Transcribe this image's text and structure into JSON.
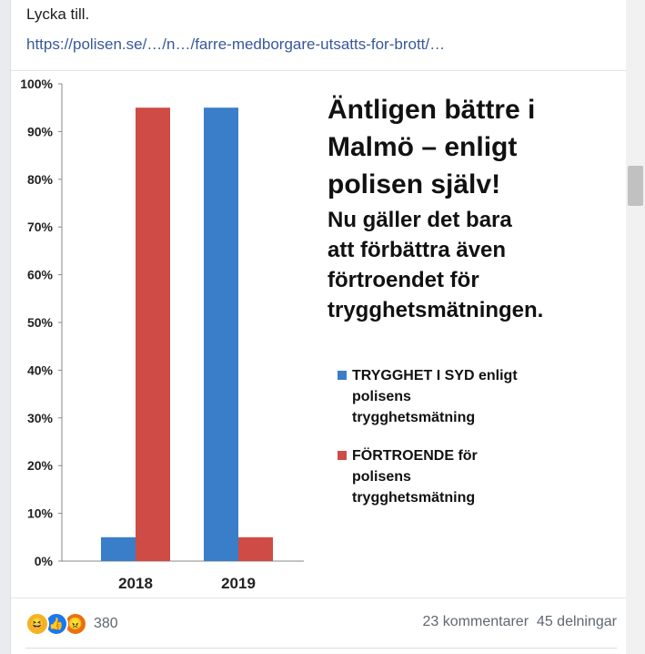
{
  "post": {
    "text": "Lycka till.",
    "link": "https://polisen.se/…/n…/farre-medborgare-utsatts-for-brott/…"
  },
  "image": {
    "headline": [
      "Äntligen bättre i",
      "Malmö – enligt",
      "polisen själv!"
    ],
    "subheadline": [
      "Nu gäller det bara",
      "att förbättra även",
      "förtroendet för",
      "trygghetsmätningen."
    ]
  },
  "chart_data": {
    "type": "bar",
    "categories": [
      "2018",
      "2019"
    ],
    "series": [
      {
        "name": "TRYGGHET I SYD enligt polisens trygghetsmätning",
        "legend_lines": [
          "TRYGGHET I SYD enligt",
          "polisens",
          "trygghetsmätning"
        ],
        "color": "#3a7dc9",
        "values": [
          5,
          95
        ]
      },
      {
        "name": "FÖRTROENDE för polisens trygghetsmätning",
        "legend_lines": [
          "FÖRTROENDE för",
          "polisens",
          "trygghetsmätning"
        ],
        "color": "#cf4b45",
        "values": [
          95,
          5
        ]
      }
    ],
    "yticks": [
      "0%",
      "10%",
      "20%",
      "30%",
      "40%",
      "50%",
      "60%",
      "70%",
      "80%",
      "90%",
      "100%"
    ],
    "ylim": [
      0,
      100
    ],
    "legend_position": "right"
  },
  "footer": {
    "reaction_icons": [
      "haha-icon",
      "like-icon",
      "angry-icon"
    ],
    "reaction_count": "380",
    "comments": "23 kommentarer",
    "shares": "45 delningar"
  }
}
